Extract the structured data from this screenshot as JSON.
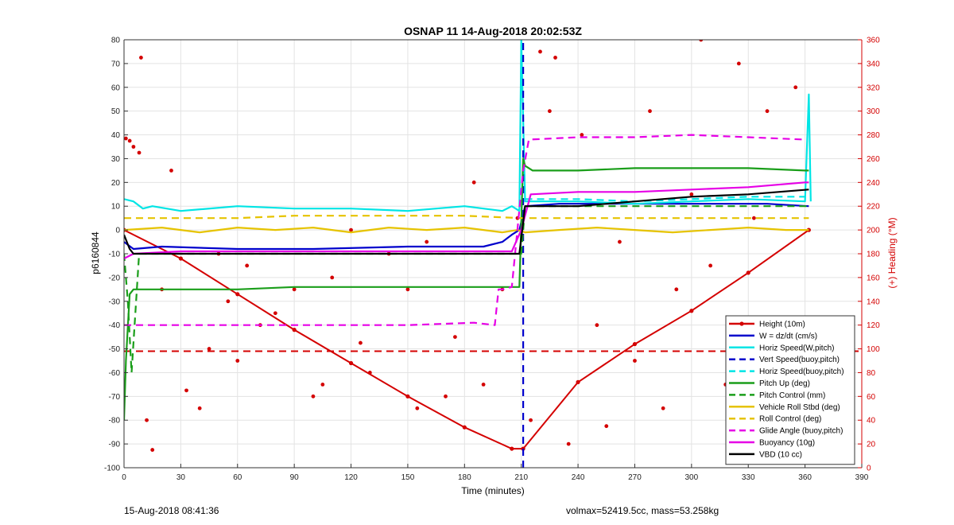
{
  "chart_data": {
    "type": "line",
    "title": "OSNAP 11 14-Aug-2018 20:02:53Z",
    "xlabel": "Time (minutes)",
    "ylabel": "p6160844",
    "y2label": "(+) Heading (°M)",
    "xlim": [
      0,
      390
    ],
    "ylim": [
      -100,
      80
    ],
    "y2lim": [
      0,
      360
    ],
    "xticks": [
      0,
      30,
      60,
      90,
      120,
      150,
      180,
      210,
      240,
      270,
      300,
      330,
      360,
      390
    ],
    "yticks": [
      -100,
      -90,
      -80,
      -70,
      -60,
      -50,
      -40,
      -30,
      -20,
      -10,
      0,
      10,
      20,
      30,
      40,
      50,
      60,
      70,
      80
    ],
    "y2ticks": [
      0,
      20,
      40,
      60,
      80,
      100,
      120,
      140,
      160,
      180,
      200,
      220,
      240,
      260,
      280,
      300,
      320,
      340,
      360
    ],
    "grid": true,
    "legend_position": "bottom-right",
    "series": [
      {
        "name": "Height (10m)",
        "color": "#d40000",
        "style": "solid",
        "marker": "dot",
        "x": [
          0,
          30,
          60,
          90,
          120,
          150,
          180,
          205,
          211,
          240,
          270,
          300,
          330,
          362
        ],
        "y": [
          0,
          -12,
          -27,
          -42,
          -56,
          -70,
          -83,
          -92,
          -92,
          -64,
          -48,
          -34,
          -18,
          0
        ]
      },
      {
        "name": "W = dz/dt (cm/s)",
        "color": "#0000cc",
        "style": "solid",
        "x": [
          0,
          5,
          20,
          60,
          100,
          150,
          190,
          200,
          205,
          209,
          212,
          230,
          260,
          300,
          340,
          362
        ],
        "y": [
          -5,
          -8,
          -7,
          -8,
          -8,
          -7,
          -7,
          -5,
          -2,
          0,
          10,
          11,
          11,
          11,
          11,
          10
        ]
      },
      {
        "name": "Horiz Speed(W,pitch)",
        "color": "#00e5e5",
        "style": "solid",
        "x": [
          0,
          5,
          10,
          15,
          30,
          60,
          90,
          120,
          150,
          180,
          200,
          205,
          209,
          210,
          212,
          240,
          270,
          300,
          330,
          360,
          362,
          363
        ],
        "y": [
          13,
          12,
          9,
          10,
          8,
          10,
          9,
          9,
          8,
          10,
          8,
          10,
          8,
          80,
          12,
          12,
          11,
          12,
          13,
          12,
          57,
          12
        ]
      },
      {
        "name": "Vert Speed(buoy,pitch)",
        "color": "#0000cc",
        "style": "dashed",
        "x": [
          211,
          211
        ],
        "y": [
          -100,
          80
        ]
      },
      {
        "name": "Horiz Speed(buoy,pitch)",
        "color": "#00e5e5",
        "style": "dashed",
        "x": [
          212,
          240,
          270,
          300,
          330,
          360
        ],
        "y": [
          13,
          13,
          12,
          13,
          14,
          14
        ]
      },
      {
        "name": "Pitch Up (deg)",
        "color": "#1a9e1a",
        "style": "solid",
        "x": [
          0,
          1,
          3,
          5,
          30,
          60,
          90,
          120,
          150,
          180,
          205,
          209,
          211,
          212,
          216,
          240,
          270,
          300,
          330,
          360,
          362
        ],
        "y": [
          -80,
          -55,
          -27,
          -25,
          -25,
          -25,
          -24,
          -24,
          -24,
          -24,
          -24,
          -24,
          30,
          27,
          25,
          25,
          26,
          26,
          26,
          25,
          25
        ]
      },
      {
        "name": "Pitch Control (mm)",
        "color": "#1a9e1a",
        "style": "dashed",
        "x": [
          0,
          2,
          4,
          8,
          210,
          212,
          240,
          270,
          300,
          330,
          362
        ],
        "y": [
          -10,
          -30,
          -60,
          -10,
          -10,
          10,
          10,
          10,
          10,
          10,
          10
        ]
      },
      {
        "name": "Vehicle Roll Stbd (deg)",
        "color": "#e6c300",
        "style": "solid",
        "x": [
          0,
          20,
          40,
          60,
          80,
          100,
          120,
          140,
          160,
          180,
          200,
          208,
          212,
          230,
          250,
          270,
          290,
          310,
          330,
          350,
          362
        ],
        "y": [
          0,
          1,
          -1,
          1,
          0,
          1,
          -1,
          1,
          0,
          1,
          -1,
          0,
          -1,
          0,
          1,
          0,
          -1,
          0,
          1,
          0,
          0
        ]
      },
      {
        "name": "Roll Control (deg)",
        "color": "#e6c300",
        "style": "dashed",
        "x": [
          0,
          30,
          60,
          90,
          120,
          150,
          180,
          210,
          240,
          270,
          300,
          330,
          362
        ],
        "y": [
          5,
          5,
          5,
          6,
          6,
          6,
          6,
          5,
          5,
          5,
          5,
          5,
          5
        ]
      },
      {
        "name": "Glide Angle (buoy,pitch)",
        "color": "#e600e6",
        "style": "dashed",
        "x": [
          0,
          8,
          20,
          60,
          100,
          150,
          185,
          196,
          198,
          200,
          205,
          211,
          214,
          240,
          270,
          300,
          330,
          360
        ],
        "y": [
          -40,
          -40,
          -40,
          -40,
          -40,
          -40,
          -39,
          -40,
          -25,
          -25,
          -24,
          25,
          38,
          39,
          39,
          40,
          39,
          38
        ]
      },
      {
        "name": "Buoyancy (10g)",
        "color": "#e600e6",
        "style": "solid",
        "x": [
          0,
          5,
          30,
          60,
          90,
          120,
          150,
          180,
          205,
          210,
          215,
          240,
          270,
          300,
          330,
          360,
          362
        ],
        "y": [
          -12,
          -10,
          -9,
          -9,
          -9,
          -9,
          -9,
          -9,
          -9,
          0,
          15,
          16,
          16,
          17,
          18,
          20,
          20
        ]
      },
      {
        "name": "VBD (10 cc)",
        "color": "#000000",
        "style": "solid",
        "x": [
          0,
          3,
          5,
          30,
          60,
          90,
          120,
          150,
          180,
          209,
          212,
          240,
          270,
          300,
          330,
          362
        ],
        "y": [
          -2,
          -8,
          -10,
          -10,
          -10,
          -10,
          -10,
          -10,
          -10,
          -10,
          10,
          10,
          12,
          14,
          15,
          17
        ]
      }
    ],
    "heading_points": {
      "name": "Heading (°M)",
      "axis": "right",
      "x": [
        1,
        3,
        5,
        8,
        9,
        12,
        15,
        20,
        25,
        33,
        40,
        45,
        50,
        55,
        60,
        65,
        72,
        80,
        90,
        100,
        105,
        110,
        120,
        125,
        130,
        140,
        150,
        155,
        160,
        170,
        175,
        185,
        190,
        200,
        208,
        215,
        220,
        225,
        228,
        235,
        242,
        250,
        255,
        262,
        270,
        278,
        285,
        292,
        300,
        305,
        310,
        318,
        325,
        333,
        340,
        345,
        350,
        355
      ],
      "y": [
        277,
        275,
        270,
        265,
        345,
        40,
        15,
        150,
        250,
        65,
        50,
        100,
        180,
        140,
        90,
        170,
        120,
        130,
        150,
        60,
        70,
        160,
        200,
        105,
        80,
        180,
        150,
        50,
        190,
        60,
        110,
        240,
        70,
        150,
        210,
        40,
        350,
        300,
        345,
        20,
        280,
        120,
        35,
        190,
        90,
        300,
        50,
        150,
        230,
        360,
        170,
        70,
        340,
        210,
        300,
        120,
        50,
        320
      ]
    },
    "reference_line": {
      "y": -51,
      "color": "#d40000",
      "style": "dashed"
    },
    "footer_left": "15-Aug-2018 08:41:36",
    "footer_right": "volmax=52419.5cc, mass=53.258kg"
  }
}
